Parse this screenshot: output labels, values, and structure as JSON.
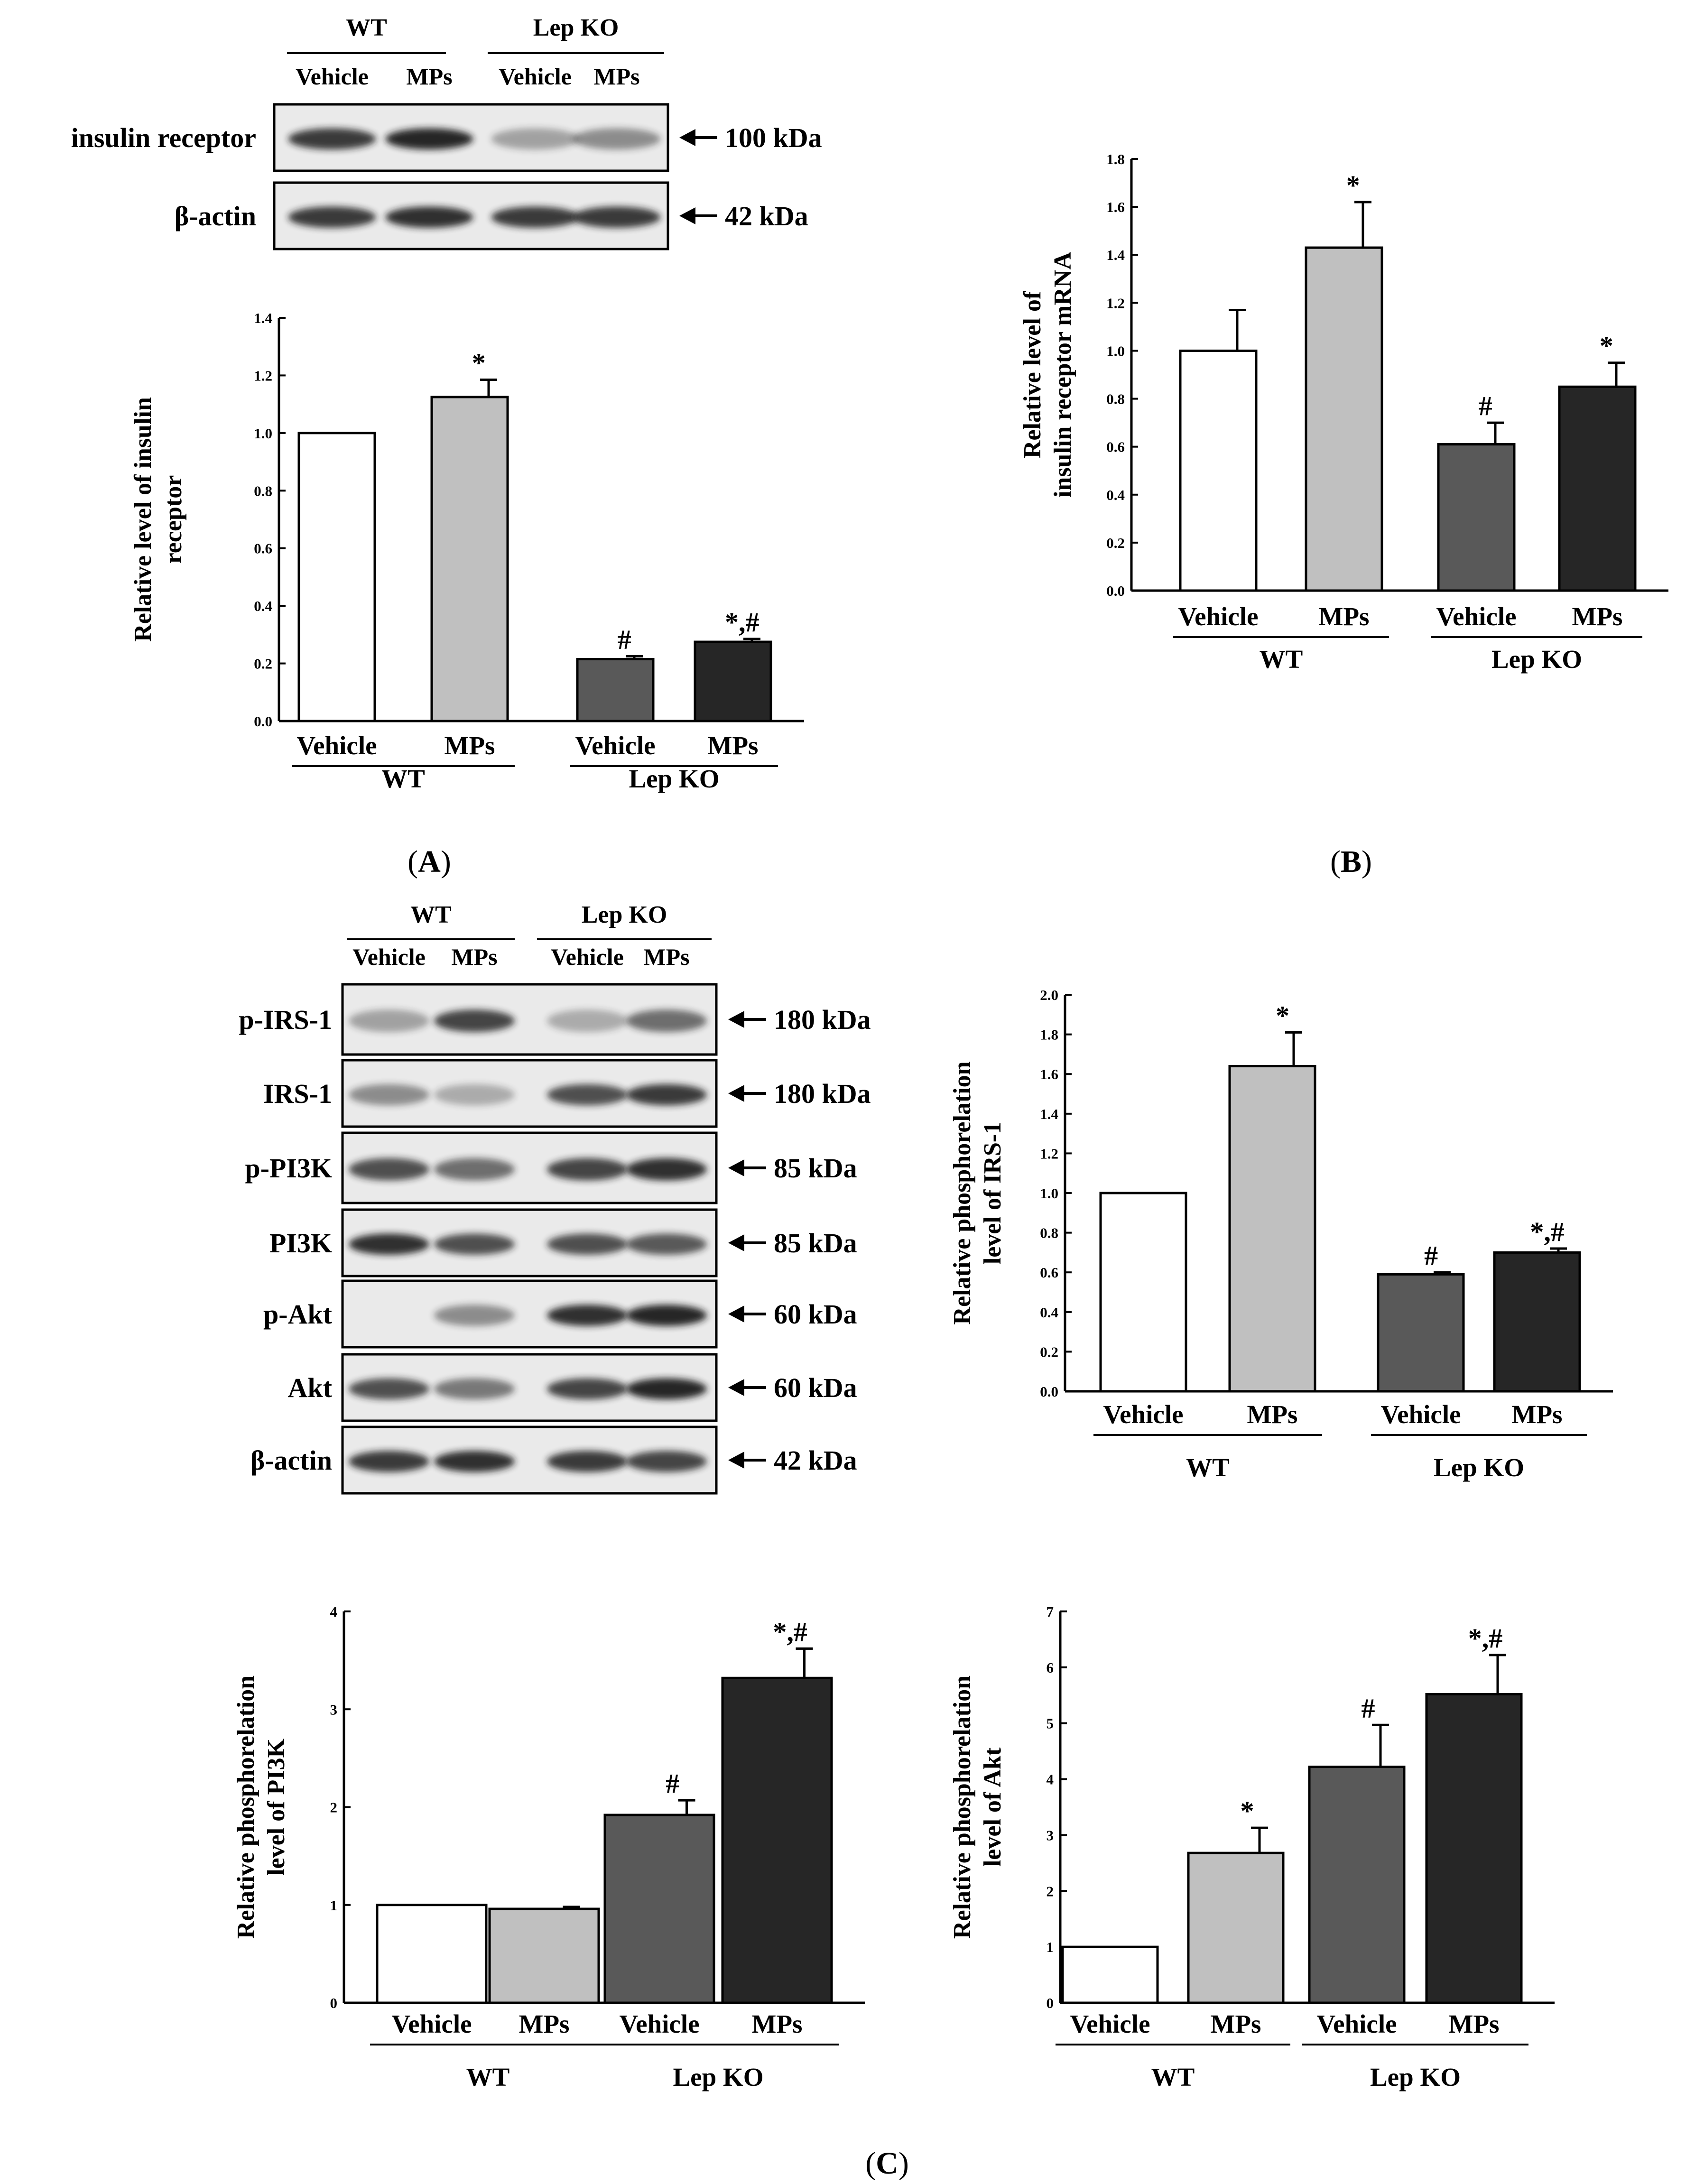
{
  "panel_labels": {
    "A": "A",
    "B": "B",
    "C": "C"
  },
  "colors": {
    "vehicle_wt": "#ffffff",
    "mps_wt": "#c0c0c0",
    "vehicle_ko": "#595959",
    "mps_ko": "#262626",
    "blot_bg": "#eaeaea",
    "band": "#1a1a1a"
  },
  "blots": [
    {
      "groups": [
        "WT",
        "Lep KO"
      ],
      "conditions": [
        "Vehicle",
        "MPs",
        "Vehicle",
        "MPs"
      ],
      "rows": [
        {
          "label": "insulin receptor",
          "size": "100 kDa",
          "intensity": [
            0.85,
            0.95,
            0.35,
            0.45
          ]
        },
        {
          "label": "β-actin",
          "size": "42 kDa",
          "intensity": [
            0.85,
            0.9,
            0.85,
            0.85
          ]
        }
      ]
    },
    {
      "groups": [
        "WT",
        "Lep KO"
      ],
      "conditions": [
        "Vehicle",
        "MPs",
        "Vehicle",
        "MPs"
      ],
      "rows": [
        {
          "label": "p-IRS-1",
          "size": "180 kDa",
          "intensity": [
            0.35,
            0.8,
            0.3,
            0.6
          ]
        },
        {
          "label": "IRS-1",
          "size": "180 kDa",
          "intensity": [
            0.45,
            0.3,
            0.75,
            0.85
          ]
        },
        {
          "label": "p-PI3K",
          "size": "85 kDa",
          "intensity": [
            0.75,
            0.6,
            0.8,
            0.9
          ]
        },
        {
          "label": "PI3K",
          "size": "85 kDa",
          "intensity": [
            0.9,
            0.75,
            0.75,
            0.7
          ]
        },
        {
          "label": "p-Akt",
          "size": "60 kDa",
          "intensity": [
            0.05,
            0.45,
            0.9,
            0.95
          ]
        },
        {
          "label": "Akt",
          "size": "60 kDa",
          "intensity": [
            0.75,
            0.55,
            0.8,
            0.95
          ]
        },
        {
          "label": "β-actin",
          "size": "42 kDa",
          "intensity": [
            0.85,
            0.9,
            0.85,
            0.8
          ]
        }
      ]
    }
  ],
  "chart_data": [
    {
      "id": "chartA",
      "panel": "A",
      "type": "bar",
      "categories": [
        "Vehicle",
        "MPs",
        "Vehicle",
        "MPs"
      ],
      "groups": [
        "WT",
        "Lep KO"
      ],
      "values": [
        1.0,
        1.125,
        0.215,
        0.275
      ],
      "errors": [
        0,
        0.06,
        0.01,
        0.01
      ],
      "annotations": [
        "",
        "*",
        "#",
        "*,#"
      ],
      "ylabel": [
        "Relative level of insulin",
        "receptor"
      ],
      "ylim": [
        0,
        1.4
      ],
      "yticks": [
        "0.0",
        "0.2",
        "0.4",
        "0.6",
        "0.8",
        "1.0",
        "1.2",
        "1.4"
      ]
    },
    {
      "id": "chartB",
      "panel": "B",
      "type": "bar",
      "categories": [
        "Vehicle",
        "MPs",
        "Vehicle",
        "MPs"
      ],
      "groups": [
        "WT",
        "Lep KO"
      ],
      "values": [
        1.0,
        1.43,
        0.61,
        0.85
      ],
      "errors": [
        0.17,
        0.19,
        0.09,
        0.1
      ],
      "annotations": [
        "",
        "*",
        "#",
        "*"
      ],
      "ylabel": [
        "Relative level of",
        "insulin receptor mRNA"
      ],
      "ylim": [
        0,
        1.8
      ],
      "yticks": [
        "0.0",
        "0.2",
        "0.4",
        "0.6",
        "0.8",
        "1.0",
        "1.2",
        "1.4",
        "1.6",
        "1.8"
      ]
    },
    {
      "id": "chartIRS",
      "panel": "C",
      "type": "bar",
      "categories": [
        "Vehicle",
        "MPs",
        "Vehicle",
        "MPs"
      ],
      "groups": [
        "WT",
        "Lep KO"
      ],
      "values": [
        1.0,
        1.64,
        0.59,
        0.7
      ],
      "errors": [
        0,
        0.17,
        0.01,
        0.02
      ],
      "annotations": [
        "",
        "*",
        "#",
        "*,#"
      ],
      "ylabel": [
        "Relative phosphorelation",
        "level of IRS-1"
      ],
      "ylim": [
        0,
        2.0
      ],
      "yticks": [
        "0.0",
        "0.2",
        "0.4",
        "0.6",
        "0.8",
        "1.0",
        "1.2",
        "1.4",
        "1.6",
        "1.8",
        "2.0"
      ]
    },
    {
      "id": "chartPI3K",
      "panel": "C",
      "type": "bar",
      "categories": [
        "Vehicle",
        "MPs",
        "Vehicle",
        "MPs"
      ],
      "groups": [
        "WT",
        "Lep KO"
      ],
      "values": [
        1.0,
        0.96,
        1.92,
        3.32
      ],
      "errors": [
        0,
        0.02,
        0.15,
        0.3
      ],
      "annotations": [
        "",
        "",
        "#",
        "*,#"
      ],
      "ylabel": [
        "Relative phosphorelation",
        "level of PI3K"
      ],
      "ylim": [
        0,
        4
      ],
      "yticks": [
        "0",
        "1",
        "2",
        "3",
        "4"
      ]
    },
    {
      "id": "chartAkt",
      "panel": "C",
      "type": "bar",
      "categories": [
        "Vehicle",
        "MPs",
        "Vehicle",
        "MPs"
      ],
      "groups": [
        "WT",
        "Lep KO"
      ],
      "values": [
        1.0,
        2.68,
        4.22,
        5.52
      ],
      "errors": [
        0,
        0.45,
        0.75,
        0.7
      ],
      "annotations": [
        "",
        "*",
        "#",
        "*,#"
      ],
      "ylabel": [
        "Relative phosphorelation",
        "level of Akt"
      ],
      "ylim": [
        0,
        7
      ],
      "yticks": [
        "0",
        "1",
        "2",
        "3",
        "4",
        "5",
        "6",
        "7"
      ]
    }
  ]
}
